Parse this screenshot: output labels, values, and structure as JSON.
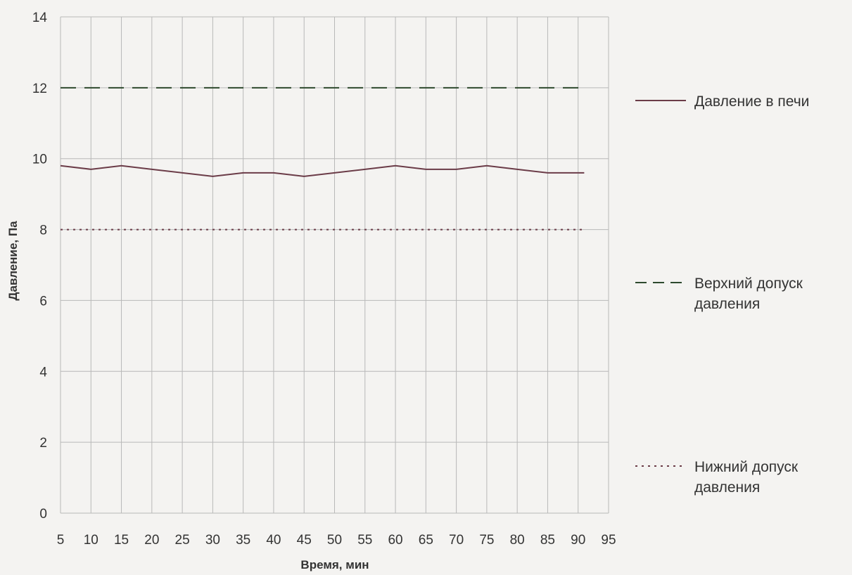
{
  "chart_data": {
    "type": "line",
    "title": "",
    "xlabel": "Время, мин",
    "ylabel": "Давление, Па",
    "xlim": [
      5,
      95
    ],
    "ylim": [
      0,
      14
    ],
    "x_ticks": [
      5,
      10,
      15,
      20,
      25,
      30,
      35,
      40,
      45,
      50,
      55,
      60,
      65,
      70,
      75,
      80,
      85,
      90,
      95
    ],
    "y_ticks": [
      0,
      2,
      4,
      6,
      8,
      10,
      12,
      14
    ],
    "grid": true,
    "legend_position": "right",
    "series": [
      {
        "name": "Давление в печи",
        "style": "solid",
        "color": "#6b3c48",
        "x": [
          5,
          10,
          15,
          20,
          25,
          30,
          35,
          40,
          45,
          50,
          55,
          60,
          65,
          70,
          75,
          80,
          85,
          90,
          91
        ],
        "y": [
          9.8,
          9.7,
          9.8,
          9.7,
          9.6,
          9.5,
          9.6,
          9.6,
          9.5,
          9.6,
          9.7,
          9.8,
          9.7,
          9.7,
          9.8,
          9.7,
          9.6,
          9.6,
          9.6
        ]
      },
      {
        "name": "Верхний допуск давления",
        "legend_lines": [
          "Верхний допуск",
          "давления"
        ],
        "style": "dashed",
        "color": "#2e4a2e",
        "x": [
          5,
          91
        ],
        "y": [
          12,
          12
        ]
      },
      {
        "name": "Нижний допуск давления",
        "legend_lines": [
          "Нижний допуск",
          "давления"
        ],
        "style": "dotted",
        "color": "#6b3c48",
        "x": [
          5,
          91
        ],
        "y": [
          8,
          8
        ]
      }
    ]
  }
}
